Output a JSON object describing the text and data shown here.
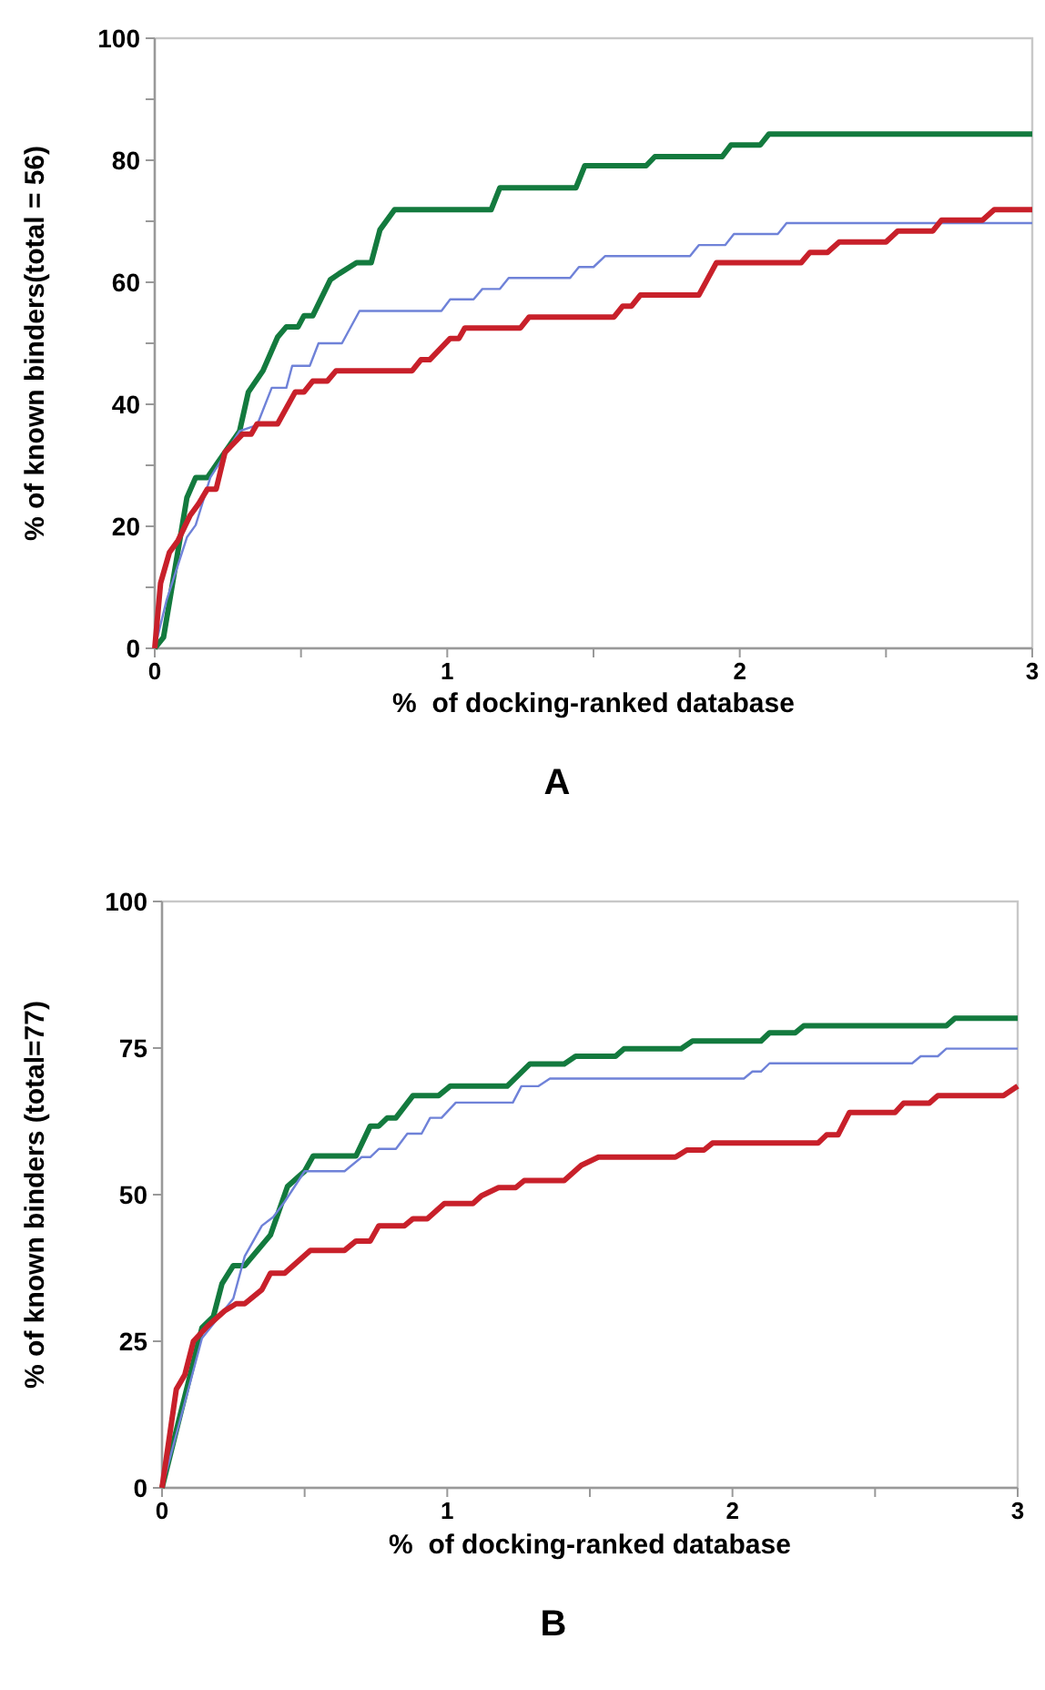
{
  "chart_data": [
    {
      "type": "line",
      "title": "A",
      "xlabel": "%  of docking-ranked database",
      "ylabel": "% of known binders(total = 56)",
      "xlim": [
        0,
        3
      ],
      "ylim": [
        0,
        100
      ],
      "xticks": [
        0,
        {
          "value": 0.5,
          "label": null
        },
        1,
        {
          "value": 1.5,
          "label": null
        },
        2,
        {
          "value": 2.5,
          "label": null
        },
        3
      ],
      "yticks": [
        0,
        {
          "value": 10,
          "label": null
        },
        20,
        {
          "value": 30,
          "label": null
        },
        40,
        {
          "value": 50,
          "label": null
        },
        60,
        {
          "value": 70,
          "label": null
        },
        80,
        {
          "value": 90,
          "label": null
        },
        100
      ],
      "grid": false,
      "marker": "none",
      "line_style": "solid",
      "series": [
        {
          "color": "#137a3e",
          "x": [
            0,
            0.03,
            0.11,
            0.14,
            0.18,
            0.29,
            0.32,
            0.37,
            0.42,
            0.45,
            0.49,
            0.51,
            0.54,
            0.6,
            0.63,
            0.69,
            0.74,
            0.77,
            0.82,
            1.15,
            1.18,
            1.44,
            1.47,
            1.68,
            1.71,
            1.94,
            1.97,
            2.07,
            2.1,
            3
          ],
          "values": [
            0,
            1.8,
            24.7,
            28,
            28,
            35.6,
            42,
            45.5,
            51,
            52.7,
            52.7,
            54.5,
            54.5,
            60.4,
            61.4,
            63.2,
            63.2,
            68.6,
            71.9,
            71.9,
            75.5,
            75.5,
            79.1,
            79.1,
            80.6,
            80.6,
            82.5,
            82.5,
            84.3,
            84.3
          ]
        },
        {
          "color": "#6f82d8",
          "x": [
            0,
            0.04,
            0.11,
            0.14,
            0.19,
            0.29,
            0.35,
            0.4,
            0.45,
            0.47,
            0.53,
            0.56,
            0.64,
            0.7,
            0.98,
            1.01,
            1.09,
            1.12,
            1.18,
            1.21,
            1.42,
            1.45,
            1.5,
            1.54,
            1.83,
            1.86,
            1.95,
            1.98,
            2.13,
            2.16,
            3
          ],
          "values": [
            0,
            7.8,
            18.2,
            20.2,
            28,
            35.6,
            36.6,
            42.7,
            42.7,
            46.3,
            46.3,
            50,
            50,
            55.3,
            55.3,
            57.2,
            57.2,
            58.9,
            58.9,
            60.7,
            60.7,
            62.5,
            62.5,
            64.3,
            64.3,
            66.1,
            66.1,
            67.9,
            67.9,
            69.7,
            69.7
          ]
        },
        {
          "color": "#c8202a",
          "x": [
            0,
            0.02,
            0.05,
            0.08,
            0.12,
            0.15,
            0.18,
            0.21,
            0.24,
            0.3,
            0.33,
            0.35,
            0.42,
            0.48,
            0.51,
            0.54,
            0.59,
            0.62,
            0.88,
            0.91,
            0.94,
            1.01,
            1.04,
            1.06,
            1.25,
            1.28,
            1.57,
            1.6,
            1.63,
            1.66,
            1.86,
            1.92,
            2.21,
            2.24,
            2.3,
            2.34,
            2.5,
            2.54,
            2.66,
            2.69,
            2.83,
            2.87,
            3
          ],
          "values": [
            0,
            10.7,
            15.7,
            17.7,
            21.7,
            23.7,
            26.1,
            26.1,
            32.1,
            35.1,
            35.1,
            36.8,
            36.8,
            42,
            42,
            43.8,
            43.8,
            45.5,
            45.5,
            47.3,
            47.3,
            50.8,
            50.8,
            52.5,
            52.5,
            54.3,
            54.3,
            56.1,
            56.1,
            57.9,
            57.9,
            63.2,
            63.2,
            64.9,
            64.9,
            66.6,
            66.6,
            68.4,
            68.4,
            70.2,
            70.2,
            71.9,
            71.9
          ]
        }
      ]
    },
    {
      "type": "line",
      "title": "B",
      "xlabel": "%  of docking-ranked database",
      "ylabel": "% of known binders (total=77)",
      "xlim": [
        0,
        3
      ],
      "ylim": [
        0,
        100
      ],
      "xticks": [
        0,
        {
          "value": 0.5,
          "label": null
        },
        1,
        {
          "value": 1.5,
          "label": null
        },
        2,
        {
          "value": 2.5,
          "label": null
        },
        3
      ],
      "yticks": [
        0,
        25,
        50,
        75,
        100
      ],
      "grid": false,
      "marker": "none",
      "line_style": "solid",
      "series": [
        {
          "color": "#137a3e",
          "x": [
            0,
            0.14,
            0.18,
            0.21,
            0.25,
            0.29,
            0.38,
            0.44,
            0.5,
            0.53,
            0.68,
            0.73,
            0.76,
            0.79,
            0.82,
            0.88,
            0.97,
            1.01,
            1.21,
            1.29,
            1.41,
            1.45,
            1.59,
            1.62,
            1.82,
            1.86,
            2.1,
            2.13,
            2.22,
            2.25,
            2.75,
            2.78,
            3
          ],
          "values": [
            0,
            27.3,
            29.2,
            34.8,
            37.9,
            37.9,
            43.1,
            51.4,
            54,
            56.6,
            56.6,
            61.7,
            61.7,
            63.1,
            63.1,
            66.9,
            66.9,
            68.5,
            68.5,
            72.3,
            72.3,
            73.6,
            73.6,
            74.9,
            74.9,
            76.2,
            76.2,
            77.6,
            77.6,
            78.8,
            78.8,
            80.1,
            80.1
          ]
        },
        {
          "color": "#6f82d8",
          "x": [
            0,
            0.14,
            0.2,
            0.25,
            0.29,
            0.35,
            0.39,
            0.43,
            0.5,
            0.64,
            0.7,
            0.73,
            0.76,
            0.82,
            0.86,
            0.91,
            0.94,
            0.98,
            1.03,
            1.23,
            1.26,
            1.32,
            1.36,
            2.04,
            2.07,
            2.1,
            2.13,
            2.63,
            2.66,
            2.72,
            2.75,
            3
          ],
          "values": [
            0,
            25.5,
            29.2,
            32.3,
            39.5,
            44.7,
            46.2,
            48.8,
            54,
            54,
            56.4,
            56.4,
            57.8,
            57.8,
            60.4,
            60.4,
            63.1,
            63.1,
            65.7,
            65.7,
            68.5,
            68.5,
            69.8,
            69.8,
            71,
            71,
            72.4,
            72.4,
            73.6,
            73.6,
            74.9,
            74.9
          ]
        },
        {
          "color": "#c8202a",
          "x": [
            0,
            0.05,
            0.08,
            0.11,
            0.16,
            0.22,
            0.26,
            0.29,
            0.35,
            0.38,
            0.43,
            0.52,
            0.64,
            0.68,
            0.73,
            0.76,
            0.85,
            0.88,
            0.93,
            0.99,
            1.09,
            1.12,
            1.18,
            1.24,
            1.27,
            1.41,
            1.47,
            1.53,
            1.8,
            1.84,
            1.9,
            1.93,
            2.3,
            2.33,
            2.37,
            2.41,
            2.57,
            2.6,
            2.69,
            2.72,
            2.95,
            3
          ],
          "values": [
            0,
            16.8,
            19.3,
            25,
            27.6,
            30.2,
            31.4,
            31.4,
            33.8,
            36.6,
            36.6,
            40.5,
            40.5,
            42.1,
            42.1,
            44.7,
            44.7,
            45.9,
            45.9,
            48.5,
            48.5,
            49.8,
            51.2,
            51.2,
            52.4,
            52.4,
            55,
            56.4,
            56.4,
            57.6,
            57.6,
            58.8,
            58.8,
            60.2,
            60.2,
            64,
            64,
            65.6,
            65.6,
            66.9,
            66.9,
            68.5
          ]
        }
      ]
    }
  ]
}
